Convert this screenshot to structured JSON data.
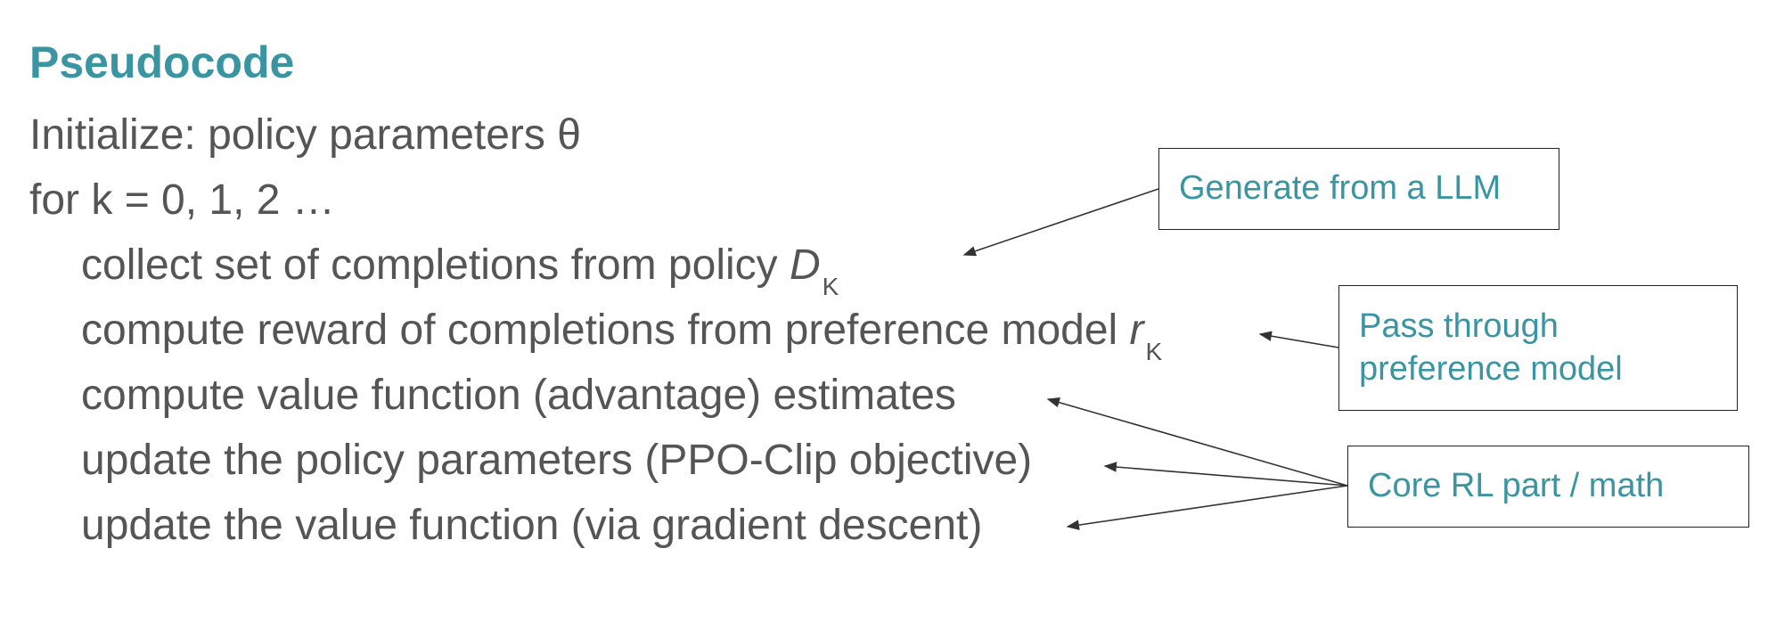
{
  "title": "Pseudocode",
  "lines": {
    "init": "Initialize: policy parameters θ",
    "loop": "for k = 0, 1, 2 …",
    "collect": "collect set of completions from policy ",
    "collect_sym": "D",
    "collect_sub": "K",
    "reward": "compute reward of completions from preference model ",
    "reward_sym": "r",
    "reward_sub": "K",
    "value": "compute value function (advantage) estimates",
    "update_policy": "update the policy parameters (PPO-Clip objective)",
    "update_value": "update the value function (via gradient descent)"
  },
  "annotations": {
    "generate": "Generate from a LLM",
    "preference_line1": "Pass through",
    "preference_line2": "preference model",
    "core": "Core RL part / math"
  },
  "colors": {
    "accent": "#3a95a3",
    "text": "#555555",
    "border": "#222222"
  }
}
